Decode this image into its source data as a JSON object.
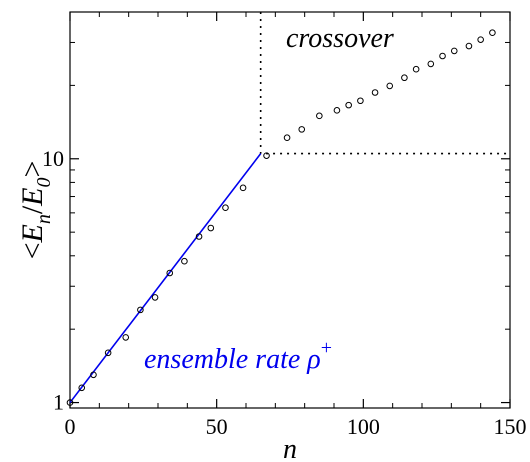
{
  "chart_data": {
    "type": "scatter",
    "xlabel": "n",
    "ylabel": {
      "open": "<",
      "E1": "E",
      "sub1": "n",
      "slash": "/",
      "E2": "E",
      "sub2": "0",
      "close": ">"
    },
    "xlim": [
      0,
      150
    ],
    "ylim": [
      0.95,
      40
    ],
    "yscale": "log",
    "x_ticks": [
      0,
      50,
      100,
      150
    ],
    "x_tick_labels": [
      "0",
      "50",
      "100",
      "150"
    ],
    "y_ticks": [
      1,
      10
    ],
    "y_tick_labels": [
      "1",
      "10"
    ],
    "grid": false,
    "series": [
      {
        "marker": "open-circle",
        "color": "#000000",
        "points": [
          [
            0,
            1.0
          ],
          [
            4,
            1.15
          ],
          [
            8,
            1.3
          ],
          [
            13,
            1.6
          ],
          [
            19,
            1.85
          ],
          [
            24,
            2.4
          ],
          [
            29,
            2.7
          ],
          [
            34,
            3.4
          ],
          [
            39,
            3.8
          ],
          [
            44,
            4.8
          ],
          [
            48,
            5.2
          ],
          [
            53,
            6.3
          ],
          [
            59,
            7.6
          ],
          [
            67,
            10.3
          ],
          [
            74,
            12.2
          ],
          [
            79,
            13.2
          ],
          [
            85,
            15.0
          ],
          [
            91,
            15.8
          ],
          [
            95,
            16.6
          ],
          [
            99,
            17.3
          ],
          [
            104,
            18.7
          ],
          [
            109,
            19.9
          ],
          [
            114,
            21.5
          ],
          [
            118,
            23.3
          ],
          [
            123,
            24.5
          ],
          [
            127,
            26.4
          ],
          [
            131,
            27.7
          ],
          [
            136,
            29.0
          ],
          [
            140,
            30.8
          ],
          [
            144,
            32.9
          ]
        ]
      },
      {
        "line": true,
        "color": "#0000ee",
        "points": [
          [
            0,
            1.0
          ],
          [
            65,
            10.5
          ]
        ]
      }
    ],
    "crossover_box": {
      "x": [
        65,
        150
      ],
      "y": [
        10.5,
        40
      ]
    },
    "annotations": {
      "crossover": "crossover",
      "ensemble_rate": "ensemble rate ρ",
      "ensemble_sup": "+"
    }
  }
}
